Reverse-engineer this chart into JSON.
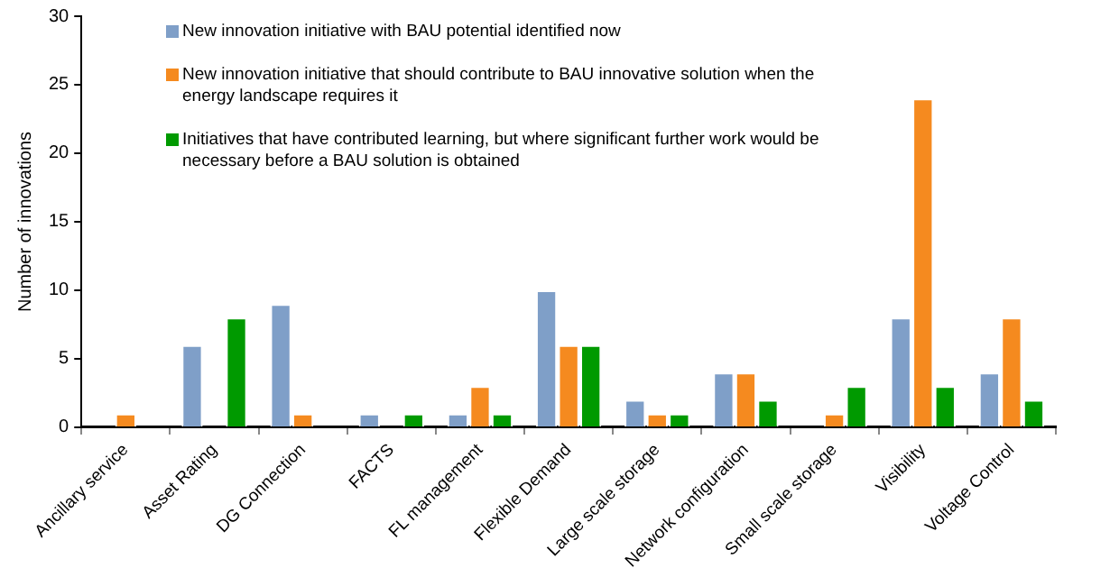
{
  "chart_data": {
    "type": "bar",
    "ylabel": "Number of innovations",
    "categories": [
      "Ancillary service",
      "Asset Rating",
      "DG Connection",
      "FACTS",
      "FL management",
      "Flexible Demand",
      "Large scale storage",
      "Network configuration",
      "Small scale storage",
      "Visibility",
      "Voltage Control"
    ],
    "series": [
      {
        "name": "New innovation initiative with BAU potential identified now",
        "color": "#7f9fc8",
        "values": [
          0,
          6,
          9,
          1,
          1,
          10,
          2,
          4,
          0,
          8,
          4
        ]
      },
      {
        "name": "New innovation initiative that should contribute to BAU innovative solution when the energy landscape requires it",
        "color": "#f58a1f",
        "values": [
          1,
          0,
          1,
          0,
          3,
          6,
          1,
          4,
          1,
          24,
          8
        ]
      },
      {
        "name": "Initiatives that have contributed learning, but where significant further work would be necessary before a BAU solution is obtained",
        "color": "#009a00",
        "values": [
          0,
          8,
          0,
          1,
          1,
          6,
          1,
          2,
          3,
          3,
          2
        ]
      }
    ],
    "ylim": [
      0,
      30
    ],
    "yticks": [
      0,
      5,
      10,
      15,
      20,
      25,
      30
    ],
    "grid": false,
    "legend": "top"
  }
}
